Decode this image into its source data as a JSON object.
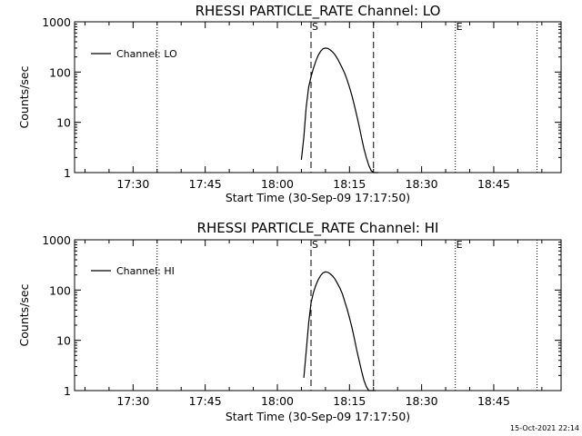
{
  "footer": {
    "timestamp": "15-Oct-2021 22:14"
  },
  "chart_data": [
    {
      "type": "line",
      "title": "RHESSI PARTICLE_RATE Channel: LO",
      "xlabel": "Start Time (30-Sep-09 17:17:50)",
      "ylabel": "Counts/sec",
      "yscale": "log",
      "ylim": [
        1,
        1000
      ],
      "y_ticks": [
        1,
        10,
        100,
        1000
      ],
      "y_tick_labels": [
        "1",
        "10",
        "100",
        "1000"
      ],
      "xlim": [
        "17:17:50",
        "18:59:00"
      ],
      "x_ticks": [
        "17:30",
        "17:45",
        "18:00",
        "18:15",
        "18:30",
        "18:45"
      ],
      "legend": {
        "label": "Channel: LO",
        "position": "top-left"
      },
      "grid": false,
      "series": [
        {
          "name": "Channel: LO",
          "x": [
            "18:05:00",
            "18:05:30",
            "18:06:00",
            "18:06:30",
            "18:07:00",
            "18:07:30",
            "18:08:00",
            "18:08:30",
            "18:09:00",
            "18:09:30",
            "18:10:00",
            "18:10:30",
            "18:11:00",
            "18:11:30",
            "18:12:00",
            "18:12:30",
            "18:13:00",
            "18:13:30",
            "18:14:00",
            "18:14:30",
            "18:15:00",
            "18:15:30",
            "18:16:00",
            "18:16:30",
            "18:17:00",
            "18:17:30",
            "18:18:00",
            "18:18:30",
            "18:19:00",
            "18:19:30",
            "18:20:00",
            "18:20:30",
            "18:21:00"
          ],
          "values": [
            1.8,
            5,
            20,
            50,
            80,
            120,
            165,
            215,
            260,
            290,
            300,
            295,
            275,
            250,
            220,
            185,
            150,
            120,
            95,
            70,
            50,
            34,
            22,
            14,
            8.5,
            5,
            3,
            2,
            1.4,
            1.1,
            1,
            1,
            1
          ]
        }
      ],
      "markers": [
        {
          "label": "S",
          "time": "18:07:00"
        },
        {
          "label": "E",
          "time": "18:37:00"
        }
      ],
      "dashed_lines": [
        "18:07:00",
        "18:20:00"
      ],
      "dotted_lines": [
        "17:35:00",
        "18:37:00",
        "18:54:00"
      ]
    },
    {
      "type": "line",
      "title": "RHESSI PARTICLE_RATE Channel: HI",
      "xlabel": "Start Time (30-Sep-09 17:17:50)",
      "ylabel": "Counts/sec",
      "yscale": "log",
      "ylim": [
        1,
        1000
      ],
      "y_ticks": [
        1,
        10,
        100,
        1000
      ],
      "y_tick_labels": [
        "1",
        "10",
        "100",
        "1000"
      ],
      "xlim": [
        "17:17:50",
        "18:59:00"
      ],
      "x_ticks": [
        "17:30",
        "17:45",
        "18:00",
        "18:15",
        "18:30",
        "18:45"
      ],
      "legend": {
        "label": "Channel: HI",
        "position": "top-left"
      },
      "grid": false,
      "series": [
        {
          "name": "Channel: HI",
          "x": [
            "18:05:30",
            "18:06:00",
            "18:06:30",
            "18:07:00",
            "18:07:30",
            "18:08:00",
            "18:08:30",
            "18:09:00",
            "18:09:30",
            "18:10:00",
            "18:10:30",
            "18:11:00",
            "18:11:30",
            "18:12:00",
            "18:12:30",
            "18:13:00",
            "18:13:30",
            "18:14:00",
            "18:14:30",
            "18:15:00",
            "18:15:30",
            "18:16:00",
            "18:16:30",
            "18:17:00",
            "18:17:30",
            "18:18:00",
            "18:18:30",
            "18:19:00",
            "18:19:30",
            "18:20:00",
            "18:20:30"
          ],
          "values": [
            1.8,
            6,
            22,
            55,
            90,
            125,
            160,
            195,
            220,
            230,
            225,
            210,
            190,
            165,
            135,
            110,
            85,
            60,
            42,
            28,
            18,
            11,
            6.5,
            4,
            2.5,
            1.6,
            1.2,
            1,
            1,
            1,
            1
          ]
        }
      ],
      "markers": [
        {
          "label": "S",
          "time": "18:07:00"
        },
        {
          "label": "E",
          "time": "18:37:00"
        }
      ],
      "dashed_lines": [
        "18:07:00",
        "18:20:00"
      ],
      "dotted_lines": [
        "17:35:00",
        "18:37:00",
        "18:54:00"
      ]
    }
  ]
}
